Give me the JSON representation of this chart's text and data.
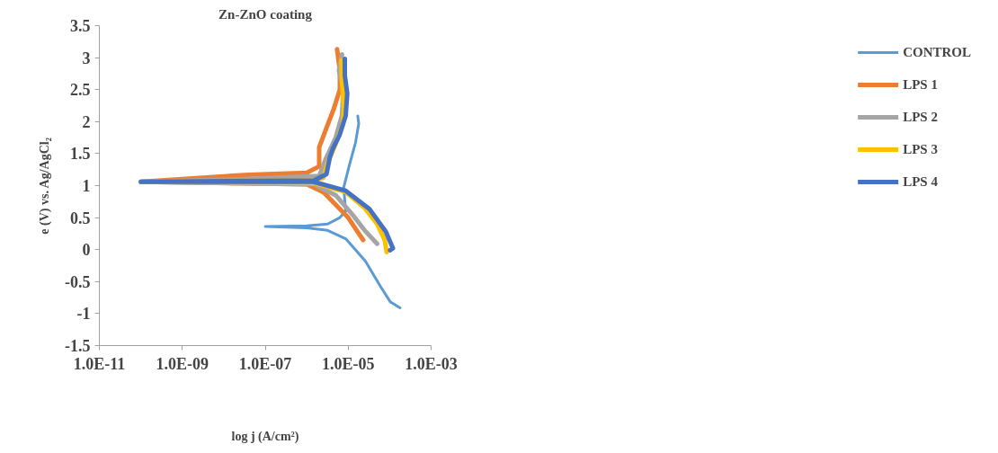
{
  "chart_data": {
    "type": "line",
    "title": "Zn-ZnO coating",
    "xlabel": "log j (A/cm²)",
    "ylabel": "e (V) vs. Ag/AgCl₂",
    "log": "x",
    "xlim": [
      1e-11,
      0.001
    ],
    "xticks": [
      {
        "value": 1e-11,
        "label": "1.0E-11"
      },
      {
        "value": 1e-09,
        "label": "1.0E-09"
      },
      {
        "value": 1e-07,
        "label": "1.0E-07"
      },
      {
        "value": 1e-05,
        "label": "1.0E-05"
      },
      {
        "value": 0.001,
        "label": "1.0E-03"
      }
    ],
    "ylim": [
      -1.5,
      3.5
    ],
    "yticks": [
      -1.5,
      -1,
      -0.5,
      0,
      0.5,
      1,
      1.5,
      2,
      2.5,
      3,
      3.5
    ],
    "grid": false,
    "legend": "right",
    "marker": "none",
    "line_style": "solid",
    "series": [
      {
        "name": "CONTROL",
        "color": "#5b9bd5",
        "x": [
          0.000178,
          0.000105,
          6.2e-05,
          2.6e-05,
          8.7e-06,
          3.2e-06,
          1e-06,
          1e-07,
          1e-06,
          3.2e-06,
          6.3e-06,
          8.7e-06,
          7.8e-06,
          1.07e-05,
          1.5e-05,
          1.8e-05,
          1.7e-05
        ],
        "values": [
          -0.91,
          -0.82,
          -0.59,
          -0.18,
          0.17,
          0.3,
          0.34,
          0.36,
          0.37,
          0.4,
          0.5,
          0.6,
          0.97,
          1.32,
          1.67,
          1.97,
          2.09
        ]
      },
      {
        "name": "LPS 1",
        "color": "#ed7d31",
        "x": [
          2.3e-05,
          1.8e-05,
          1e-05,
          5e-06,
          2.5e-06,
          1e-06,
          1e-10,
          4e-08,
          1e-06,
          2e-06,
          2e-06,
          2.8e-06,
          4.5e-06,
          6.3e-06,
          6.3e-06,
          5.4e-06
        ],
        "values": [
          0.15,
          0.25,
          0.5,
          0.7,
          0.9,
          1.02,
          1.06,
          1.17,
          1.2,
          1.3,
          1.6,
          1.85,
          2.2,
          2.5,
          2.8,
          3.13
        ]
      },
      {
        "name": "LPS 2",
        "color": "#a5a5a5",
        "x": [
          5e-05,
          2.5e-05,
          1.26e-05,
          5e-06,
          1.5e-06,
          1e-10,
          2.5e-08,
          2e-06,
          2.8e-06,
          5e-06,
          7.1e-06,
          7.6e-06,
          6e-06,
          7.1e-06
        ],
        "values": [
          0.09,
          0.3,
          0.55,
          0.85,
          1.02,
          1.06,
          1.1,
          1.15,
          1.4,
          1.75,
          2.1,
          2.5,
          2.8,
          3.05
        ]
      },
      {
        "name": "LPS 3",
        "color": "#ffc000",
        "x": [
          8.5e-05,
          7.6e-05,
          5e-05,
          2.5e-05,
          8.7e-06,
          1.5e-06,
          1e-10,
          1.5e-06,
          2.5e-06,
          3.2e-06,
          5e-06,
          7.4e-06,
          7.9e-06,
          7.1e-06,
          6.8e-06
        ],
        "values": [
          -0.04,
          0.15,
          0.4,
          0.65,
          0.9,
          1.04,
          1.06,
          1.08,
          1.12,
          1.35,
          1.65,
          1.95,
          2.2,
          2.6,
          2.96
        ]
      },
      {
        "name": "LPS 4",
        "color": "#4472c4",
        "x": [
          0.000102,
          0.00012,
          8.1e-05,
          3.3e-05,
          8.7e-06,
          1.45e-06,
          1e-10,
          1.5e-06,
          3e-06,
          3.6e-06,
          4.3e-06,
          6.2e-06,
          8.7e-06,
          9.5e-06,
          8.3e-06,
          8.3e-06
        ],
        "values": [
          -0.01,
          0.02,
          0.28,
          0.63,
          0.92,
          1.06,
          1.06,
          1.08,
          1.18,
          1.44,
          1.58,
          1.79,
          2.09,
          2.44,
          2.72,
          2.98
        ]
      }
    ]
  }
}
